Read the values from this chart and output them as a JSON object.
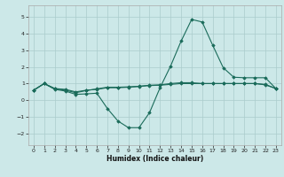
{
  "title": "",
  "xlabel": "Humidex (Indice chaleur)",
  "background_color": "#cce8e8",
  "grid_color": "#aacccc",
  "line_color": "#1a6b5a",
  "marker_color": "#1a6b5a",
  "xlim": [
    -0.5,
    23.5
  ],
  "ylim": [
    -2.7,
    5.7
  ],
  "yticks": [
    -2,
    -1,
    0,
    1,
    2,
    3,
    4,
    5
  ],
  "xticks": [
    0,
    1,
    2,
    3,
    4,
    5,
    6,
    7,
    8,
    9,
    10,
    11,
    12,
    13,
    14,
    15,
    16,
    17,
    18,
    19,
    20,
    21,
    22,
    23
  ],
  "series1_x": [
    0,
    1,
    2,
    3,
    4,
    5,
    6,
    7,
    8,
    9,
    10,
    11,
    12,
    13,
    14,
    15,
    16,
    17,
    18,
    19,
    20,
    21,
    22,
    23
  ],
  "series1_y": [
    0.6,
    1.0,
    0.7,
    0.65,
    0.5,
    0.6,
    0.65,
    0.75,
    0.75,
    0.78,
    0.82,
    0.88,
    0.9,
    0.95,
    1.0,
    1.0,
    1.0,
    1.0,
    1.0,
    1.0,
    1.0,
    1.0,
    0.95,
    0.7
  ],
  "series2_x": [
    0,
    1,
    2,
    3,
    4,
    5,
    6,
    7,
    8,
    9,
    10,
    11,
    12,
    13,
    14,
    15,
    16,
    17,
    18,
    19,
    20,
    21,
    22,
    23
  ],
  "series2_y": [
    0.6,
    1.0,
    0.65,
    0.55,
    0.35,
    0.38,
    0.42,
    -0.5,
    -1.25,
    -1.65,
    -1.65,
    -0.75,
    0.75,
    2.05,
    3.55,
    4.85,
    4.7,
    3.3,
    1.95,
    1.38,
    1.35,
    1.35,
    1.35,
    0.7
  ],
  "series3_x": [
    0,
    1,
    2,
    3,
    4,
    5,
    6,
    7,
    8,
    9,
    10,
    11,
    12,
    13,
    14,
    15,
    16,
    17,
    18,
    19,
    20,
    21,
    22,
    23
  ],
  "series3_y": [
    0.6,
    1.0,
    0.7,
    0.6,
    0.45,
    0.58,
    0.68,
    0.78,
    0.78,
    0.8,
    0.84,
    0.9,
    0.92,
    1.0,
    1.05,
    1.05,
    1.0,
    1.0,
    1.0,
    1.0,
    1.0,
    1.0,
    0.92,
    0.7
  ]
}
